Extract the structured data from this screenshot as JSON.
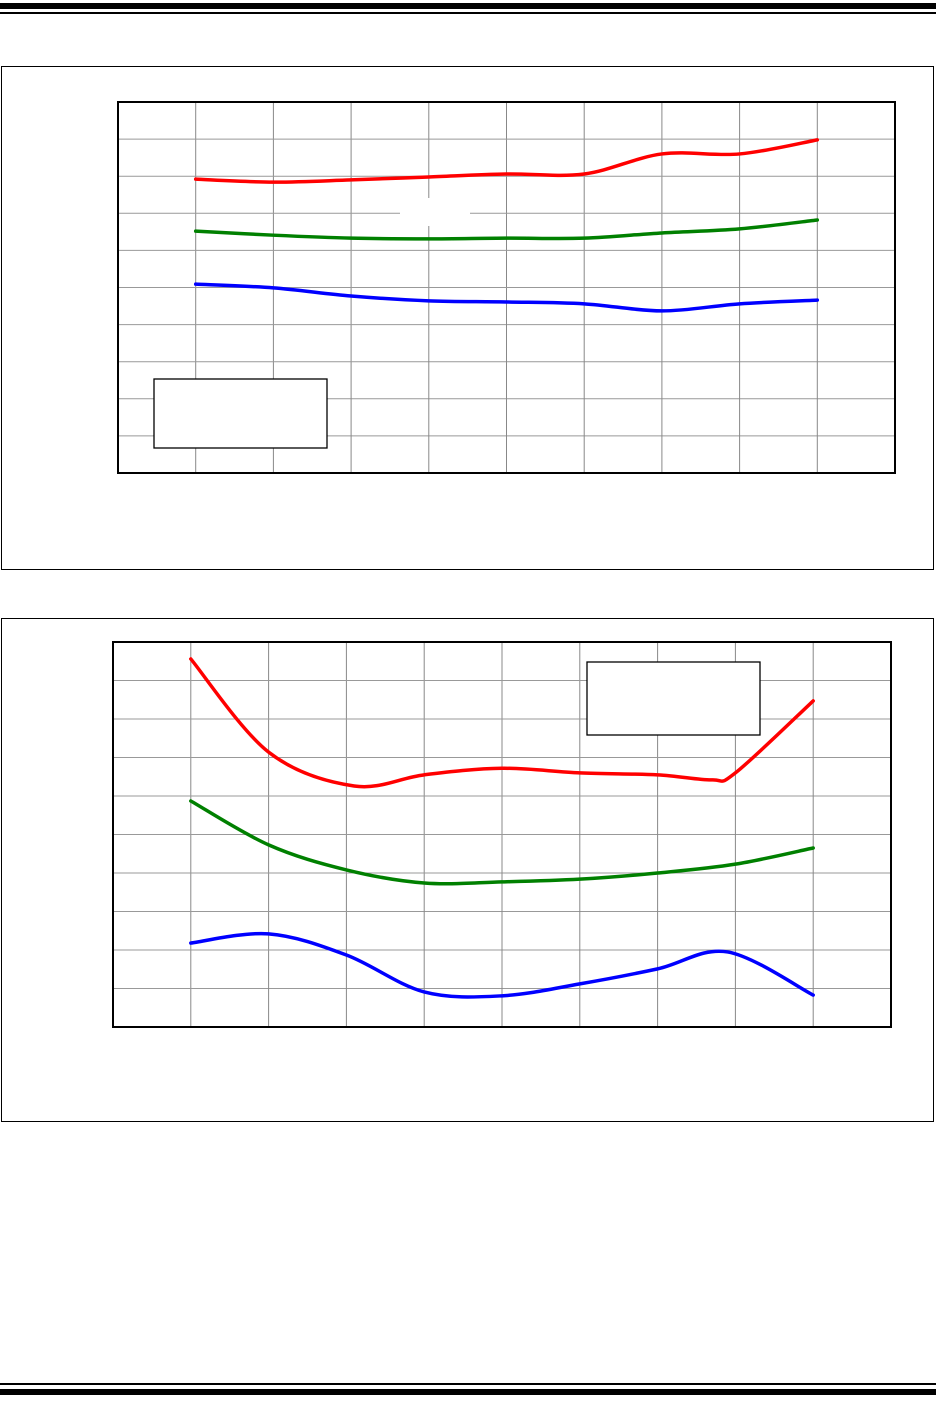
{
  "chart_data": [
    {
      "type": "line",
      "title": "",
      "xlabel": "",
      "ylabel": "",
      "xlim": [
        0,
        10
      ],
      "ylim": [
        0,
        10
      ],
      "grid": true,
      "legend": "bottom-left",
      "series": [
        {
          "color": "#ff0000",
          "points": [
            [
              1,
              7.92
            ],
            [
              2,
              7.84
            ],
            [
              3,
              7.9
            ],
            [
              4,
              7.98
            ],
            [
              5,
              8.06
            ],
            [
              6,
              8.06
            ],
            [
              7,
              8.6
            ],
            [
              8,
              8.6
            ],
            [
              9,
              8.98
            ]
          ]
        },
        {
          "color": "#008000",
          "points": [
            [
              1,
              6.52
            ],
            [
              2,
              6.41
            ],
            [
              3,
              6.33
            ],
            [
              4,
              6.31
            ],
            [
              5,
              6.33
            ],
            [
              6,
              6.33
            ],
            [
              7,
              6.47
            ],
            [
              8,
              6.58
            ],
            [
              9,
              6.82
            ]
          ]
        },
        {
          "color": "#0000ff",
          "points": [
            [
              1,
              5.09
            ],
            [
              2,
              4.99
            ],
            [
              3,
              4.77
            ],
            [
              4,
              4.64
            ],
            [
              5,
              4.61
            ],
            [
              6,
              4.56
            ],
            [
              7,
              4.37
            ],
            [
              8,
              4.56
            ],
            [
              9,
              4.66
            ]
          ]
        }
      ]
    },
    {
      "type": "line",
      "title": "",
      "xlabel": "",
      "ylabel": "",
      "xlim": [
        0,
        10
      ],
      "ylim": [
        0,
        10
      ],
      "grid": true,
      "legend": "top-right",
      "series": [
        {
          "color": "#ff0000",
          "points": [
            [
              1,
              9.56
            ],
            [
              2,
              7.14
            ],
            [
              3.1,
              6.26
            ],
            [
              4,
              6.55
            ],
            [
              5,
              6.72
            ],
            [
              6,
              6.6
            ],
            [
              7,
              6.55
            ],
            [
              7.7,
              6.42
            ],
            [
              8,
              6.6
            ],
            [
              9,
              8.47
            ]
          ]
        },
        {
          "color": "#008000",
          "points": [
            [
              1,
              5.87
            ],
            [
              2,
              4.73
            ],
            [
              3,
              4.08
            ],
            [
              4,
              3.74
            ],
            [
              5,
              3.77
            ],
            [
              6,
              3.84
            ],
            [
              7,
              4.0
            ],
            [
              8,
              4.23
            ],
            [
              9,
              4.65
            ]
          ]
        },
        {
          "color": "#0000ff",
          "points": [
            [
              1,
              2.18
            ],
            [
              2,
              2.42
            ],
            [
              3,
              1.87
            ],
            [
              4,
              0.91
            ],
            [
              5,
              0.81
            ],
            [
              6,
              1.12
            ],
            [
              7,
              1.51
            ],
            [
              7.9,
              1.95
            ],
            [
              9,
              0.83
            ]
          ]
        }
      ]
    }
  ]
}
